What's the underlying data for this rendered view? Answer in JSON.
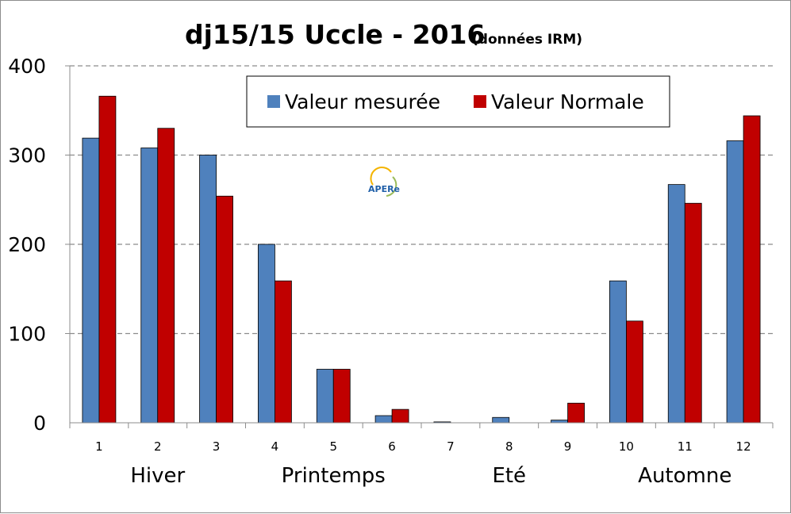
{
  "chart_data": {
    "type": "bar",
    "title": "dj15/15 Uccle - 2016",
    "subtitle": "(données IRM)",
    "xlabel": "",
    "ylabel": "",
    "ylim": [
      0,
      400
    ],
    "yticks": [
      0,
      100,
      200,
      300,
      400
    ],
    "grid": "horizontal-dashed",
    "legend_position": "top-center",
    "categories": [
      "1",
      "2",
      "3",
      "4",
      "5",
      "6",
      "7",
      "8",
      "9",
      "10",
      "11",
      "12"
    ],
    "series": [
      {
        "name": "Valeur mesurée",
        "color": "#4f81bd",
        "values": [
          319,
          308,
          300,
          200,
          60,
          8,
          1,
          6,
          3,
          159,
          267,
          316
        ]
      },
      {
        "name": "Valeur Normale",
        "color": "#c00000",
        "values": [
          366,
          330,
          254,
          159,
          60,
          15,
          0,
          0,
          22,
          114,
          246,
          344
        ]
      }
    ],
    "season_labels": [
      {
        "label": "Hiver",
        "months": [
          1,
          3
        ]
      },
      {
        "label": "Printemps",
        "months": [
          4,
          6
        ]
      },
      {
        "label": "Eté",
        "months": [
          7,
          9
        ]
      },
      {
        "label": "Automne",
        "months": [
          10,
          12
        ]
      }
    ]
  },
  "watermark": {
    "text": "APERe",
    "icon": "apere-logo-icon"
  }
}
